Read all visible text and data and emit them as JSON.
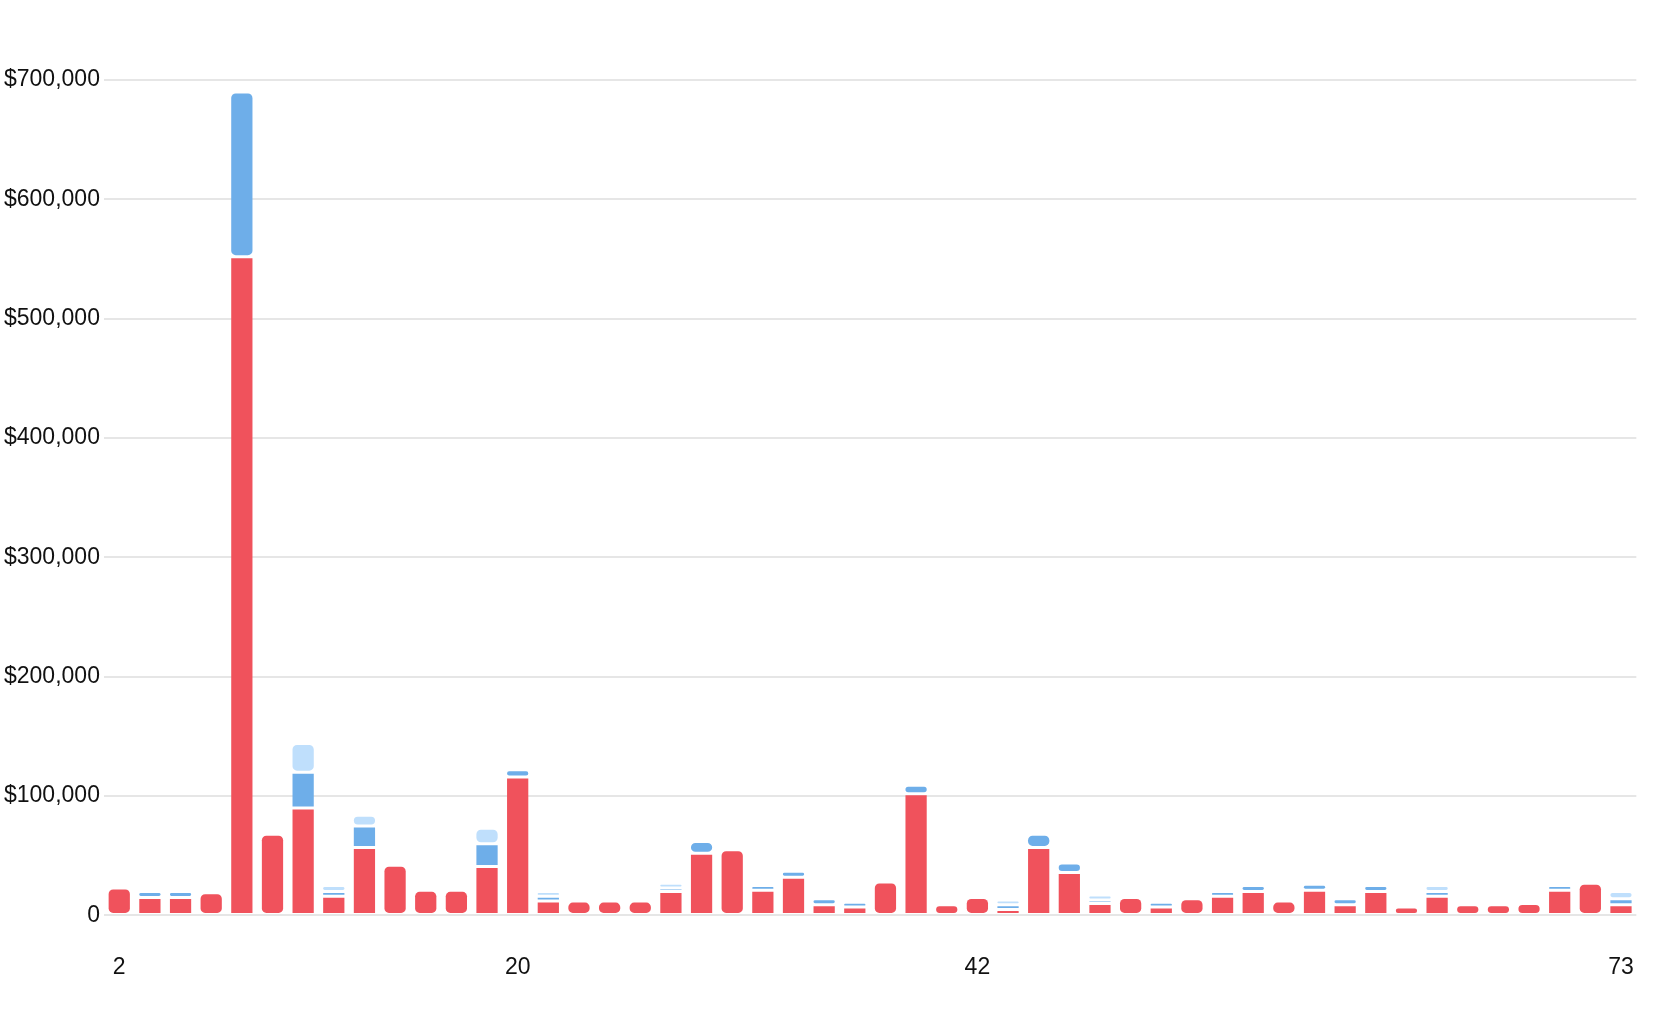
{
  "chart_data": {
    "type": "bar",
    "stacked": true,
    "categories": [
      "2",
      null,
      null,
      null,
      null,
      null,
      null,
      null,
      null,
      null,
      null,
      null,
      null,
      "20",
      null,
      null,
      null,
      null,
      null,
      null,
      null,
      null,
      null,
      null,
      null,
      null,
      null,
      null,
      "42",
      null,
      null,
      null,
      null,
      null,
      null,
      null,
      null,
      null,
      null,
      null,
      null,
      null,
      null,
      null,
      null,
      null,
      null,
      null,
      null,
      "73"
    ],
    "series": [
      {
        "color": "#f0525c",
        "values": [
          23000,
          15000,
          15000,
          19000,
          552000,
          68000,
          90000,
          16000,
          57000,
          42000,
          21000,
          21000,
          41000,
          116000,
          12000,
          12000,
          12000,
          12000,
          20000,
          52000,
          55000,
          21000,
          32000,
          9000,
          7000,
          28000,
          102000,
          9000,
          15000,
          5000,
          57000,
          36000,
          10000,
          15000,
          7000,
          14000,
          16000,
          20000,
          12000,
          21000,
          9000,
          20000,
          7000,
          16000,
          9000,
          9000,
          10000,
          21000,
          27000,
          9000
        ]
      },
      {
        "color": "#6eaee9",
        "values": [
          null,
          5000,
          5000,
          null,
          138000,
          null,
          30000,
          4000,
          18000,
          null,
          null,
          null,
          19000,
          6000,
          4000,
          null,
          null,
          null,
          3000,
          10000,
          null,
          4000,
          5000,
          5000,
          4000,
          null,
          7000,
          null,
          null,
          4000,
          11000,
          8000,
          3000,
          null,
          4000,
          null,
          4000,
          5000,
          null,
          5000,
          5000,
          5000,
          null,
          4000,
          null,
          null,
          null,
          4000,
          null,
          5000
        ]
      },
      {
        "color": "#bfdffc",
        "values": [
          null,
          null,
          null,
          null,
          null,
          null,
          24000,
          5000,
          9000,
          null,
          null,
          null,
          13000,
          null,
          4000,
          null,
          null,
          null,
          4000,
          null,
          null,
          null,
          null,
          null,
          null,
          null,
          null,
          null,
          null,
          4000,
          null,
          null,
          4000,
          null,
          null,
          null,
          null,
          null,
          null,
          null,
          null,
          null,
          null,
          5000,
          null,
          null,
          null,
          null,
          null,
          6000
        ]
      }
    ],
    "ylim": [
      0,
      700000
    ],
    "yticks": [
      {
        "value": 0,
        "label": "0"
      },
      {
        "value": 100000,
        "label": "$100,000"
      },
      {
        "value": 200000,
        "label": "$200,000"
      },
      {
        "value": 300000,
        "label": "$300,000"
      },
      {
        "value": 400000,
        "label": "$400,000"
      },
      {
        "value": 500000,
        "label": "$500,000"
      },
      {
        "value": 600000,
        "label": "$600,000"
      },
      {
        "value": 700000,
        "label": "$700,000"
      }
    ],
    "grid": "y"
  }
}
